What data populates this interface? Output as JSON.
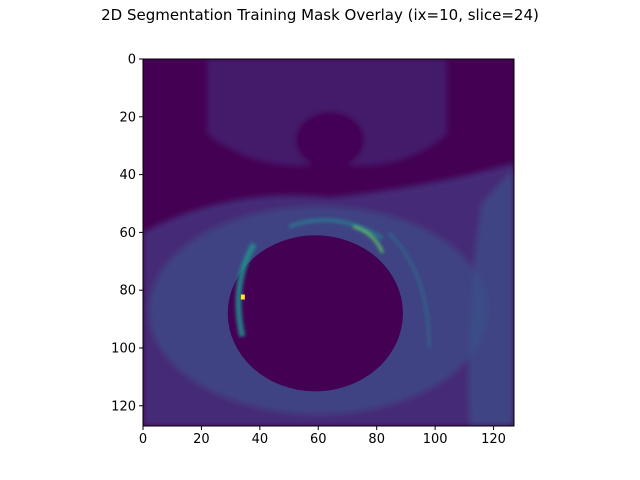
{
  "chart_data": {
    "type": "heatmap",
    "title": "2D Segmentation Training Mask Overlay (ix=10, slice=24)",
    "colormap": "viridis",
    "image_size": [
      128,
      128
    ],
    "xlim": [
      0,
      127
    ],
    "ylim": [
      127,
      0
    ],
    "x_ticks": [
      0,
      20,
      40,
      60,
      80,
      100,
      120
    ],
    "y_ticks": [
      0,
      20,
      40,
      60,
      80,
      100,
      120
    ],
    "xlabel": "",
    "ylabel": "",
    "colors": {
      "background": "#440154",
      "dim_tissue": "#46327e",
      "mid_tissue": "#3b528b",
      "edge": "#2c728e",
      "bright_edge": "#21918c",
      "highlight": "#5ec962",
      "peak": "#fde725"
    }
  }
}
